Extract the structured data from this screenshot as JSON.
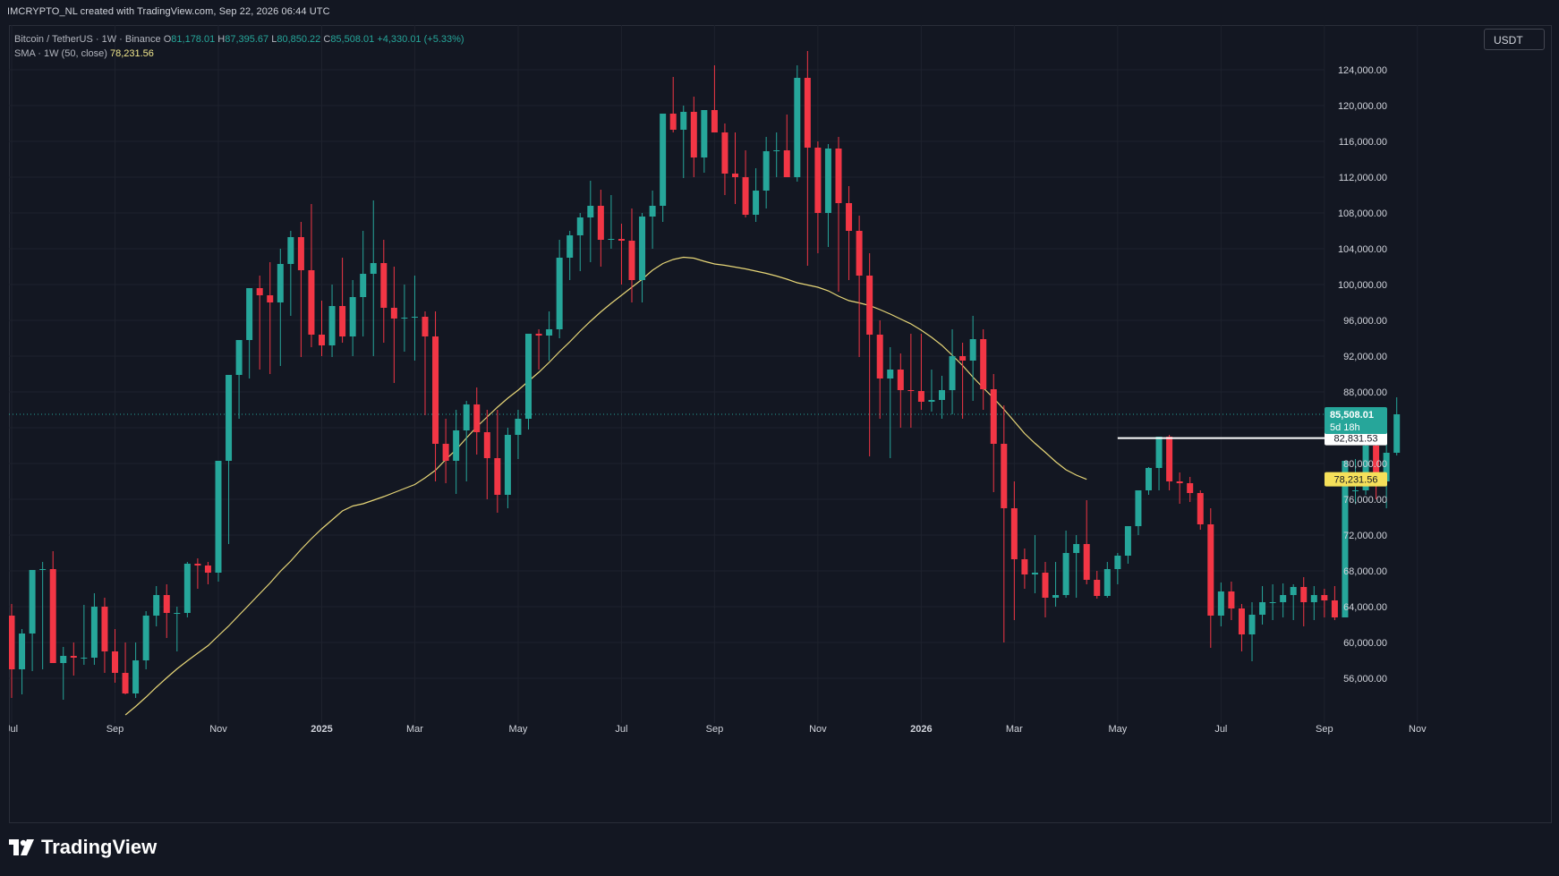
{
  "header": {
    "caption": "IMCRYPTO_NL created with TradingView.com, Sep 22, 2026 06:44 UTC"
  },
  "legend": {
    "symbol_line": "Bitcoin / TetherUS · 1W · Binance",
    "open_label": "O",
    "open": "81,178.01",
    "high_label": "H",
    "high": "87,395.67",
    "low_label": "L",
    "low": "80,850.22",
    "close_label": "C",
    "close": "85,508.01",
    "change": "+4,330.01 (+5.33%)",
    "sma_label": "SMA · 1W (50, close)",
    "sma_value": "78,231.56"
  },
  "currency": "USDT",
  "brand": {
    "name": "TradingView"
  },
  "colors": {
    "background": "#131722",
    "up": "#26a69a",
    "down": "#f23645",
    "sma": "#e8d778",
    "grid": "#1e222d",
    "axis_text": "#d1d4dc",
    "sma_label_bg": "#f5e05a",
    "level_line": "#ffffff"
  },
  "chart_data": {
    "type": "candlestick",
    "title": "Bitcoin / TetherUS · 1W · Binance",
    "y_axis_currency": "USDT",
    "ylim": [
      52000,
      127000
    ],
    "y_ticks": [
      "56,000.00",
      "60,000.00",
      "64,000.00",
      "68,000.00",
      "72,000.00",
      "76,000.00",
      "80,000.00",
      "84,000.00",
      "88,000.00",
      "92,000.00",
      "96,000.00",
      "100,000.00",
      "104,000.00",
      "108,000.00",
      "112,000.00",
      "116,000.00",
      "120,000.00",
      "124,000.00"
    ],
    "y_tick_values": [
      56000,
      60000,
      64000,
      68000,
      72000,
      76000,
      80000,
      84000,
      88000,
      92000,
      96000,
      100000,
      104000,
      108000,
      112000,
      116000,
      120000,
      124000
    ],
    "x_ticks": [
      {
        "label": "Jul",
        "week": 0
      },
      {
        "label": "Sep",
        "week": 10
      },
      {
        "label": "Nov",
        "week": 20
      },
      {
        "label": "2025",
        "week": 30
      },
      {
        "label": "Mar",
        "week": 39
      },
      {
        "label": "May",
        "week": 49
      },
      {
        "label": "Jul",
        "week": 59
      },
      {
        "label": "Sep",
        "week": 68
      },
      {
        "label": "Nov",
        "week": 78
      },
      {
        "label": "2026",
        "week": 88
      },
      {
        "label": "Mar",
        "week": 97
      },
      {
        "label": "May",
        "week": 107
      },
      {
        "label": "Jul",
        "week": 117
      },
      {
        "label": "Sep",
        "week": 127
      },
      {
        "label": "Nov",
        "week": 136
      }
    ],
    "candles_ohlc": [
      [
        63000,
        64300,
        53800,
        57000
      ],
      [
        57000,
        61500,
        54200,
        61000
      ],
      [
        61000,
        62000,
        56800,
        68100
      ],
      [
        68100,
        69000,
        57000,
        68200
      ],
      [
        68200,
        70200,
        59500,
        57700
      ],
      [
        57700,
        59500,
        53600,
        58500
      ],
      [
        58500,
        60000,
        56300,
        58300
      ],
      [
        58300,
        64200,
        57500,
        58300
      ],
      [
        58300,
        65500,
        57500,
        64000
      ],
      [
        64000,
        65000,
        56600,
        59000
      ],
      [
        59000,
        61500,
        55500,
        56600
      ],
      [
        56600,
        60000,
        54200,
        54300
      ],
      [
        54300,
        60000,
        53800,
        58000
      ],
      [
        58000,
        63500,
        57000,
        63000
      ],
      [
        63000,
        66300,
        61800,
        65300
      ],
      [
        65300,
        66500,
        60500,
        63300
      ],
      [
        63300,
        64000,
        59000,
        63300
      ],
      [
        63300,
        69000,
        62800,
        68800
      ],
      [
        68800,
        69400,
        66000,
        68600
      ],
      [
        68600,
        69000,
        66500,
        67800
      ],
      [
        67800,
        72000,
        66800,
        80300
      ],
      [
        80300,
        81000,
        71000,
        89900
      ],
      [
        89900,
        93000,
        85000,
        93800
      ],
      [
        93800,
        99000,
        89500,
        99600
      ],
      [
        99600,
        101000,
        90500,
        98800
      ],
      [
        98800,
        102500,
        90000,
        98000
      ],
      [
        98000,
        104000,
        90900,
        102300
      ],
      [
        102300,
        106000,
        96500,
        105300
      ],
      [
        105300,
        107000,
        91900,
        101600
      ],
      [
        101600,
        109000,
        93000,
        94400
      ],
      [
        94400,
        98200,
        92000,
        93200
      ],
      [
        93200,
        100000,
        91900,
        97600
      ],
      [
        97600,
        103000,
        93500,
        94200
      ],
      [
        94200,
        100500,
        92000,
        98600
      ],
      [
        98600,
        106000,
        94200,
        101200
      ],
      [
        101200,
        109400,
        92000,
        102400
      ],
      [
        102400,
        105000,
        93500,
        97400
      ],
      [
        97400,
        102000,
        89000,
        96200
      ],
      [
        96200,
        100000,
        92500,
        96300
      ],
      [
        96300,
        101000,
        91500,
        96400
      ],
      [
        96400,
        97000,
        85400,
        94200
      ],
      [
        94200,
        97000,
        78000,
        82200
      ],
      [
        82200,
        85000,
        77800,
        80300
      ],
      [
        80300,
        86000,
        76600,
        83700
      ],
      [
        83700,
        87000,
        78000,
        86600
      ],
      [
        86600,
        88500,
        81000,
        83500
      ],
      [
        83500,
        86000,
        76000,
        80600
      ],
      [
        80600,
        86000,
        74500,
        76500
      ],
      [
        76500,
        84000,
        75000,
        83200
      ],
      [
        83200,
        86000,
        80500,
        85000
      ],
      [
        85000,
        91500,
        83800,
        94500
      ],
      [
        94500,
        95000,
        90500,
        94300
      ],
      [
        94300,
        97000,
        91500,
        95000
      ],
      [
        95000,
        105000,
        94000,
        103000
      ],
      [
        103000,
        106000,
        100500,
        105500
      ],
      [
        105500,
        108000,
        101500,
        107500
      ],
      [
        107500,
        111600,
        102500,
        108800
      ],
      [
        108800,
        110600,
        102000,
        105000
      ],
      [
        105000,
        110000,
        104000,
        105100
      ],
      [
        105100,
        106800,
        100000,
        104900
      ],
      [
        104900,
        108500,
        98000,
        100500
      ],
      [
        100500,
        108000,
        98000,
        107600
      ],
      [
        107600,
        110500,
        104000,
        108800
      ],
      [
        108800,
        118000,
        107000,
        119100
      ],
      [
        119100,
        123200,
        117000,
        117300
      ],
      [
        117300,
        120000,
        111900,
        119300
      ],
      [
        119300,
        121000,
        112000,
        114200
      ],
      [
        114200,
        119000,
        112500,
        119500
      ],
      [
        119500,
        124500,
        117000,
        117000
      ],
      [
        117000,
        118000,
        110000,
        112400
      ],
      [
        112400,
        117000,
        109000,
        112000
      ],
      [
        112000,
        115000,
        107500,
        107800
      ],
      [
        107800,
        113000,
        107000,
        110500
      ],
      [
        110500,
        116500,
        108500,
        114900
      ],
      [
        114900,
        117000,
        112000,
        115000
      ],
      [
        115000,
        119000,
        112000,
        112000
      ],
      [
        112000,
        124500,
        111500,
        123100
      ],
      [
        123100,
        126100,
        102100,
        115300
      ],
      [
        115300,
        116000,
        103500,
        108000
      ],
      [
        108000,
        115700,
        104200,
        115200
      ],
      [
        115200,
        116500,
        99200,
        109100
      ],
      [
        109100,
        111000,
        100500,
        106000
      ],
      [
        106000,
        107700,
        91900,
        101000
      ],
      [
        101000,
        103500,
        80800,
        94400
      ],
      [
        94400,
        96000,
        85000,
        89500
      ],
      [
        89500,
        93000,
        80600,
        90500
      ],
      [
        90500,
        92300,
        84000,
        88200
      ],
      [
        88200,
        94500,
        84000,
        88100
      ],
      [
        88100,
        94500,
        86000,
        86900
      ],
      [
        86900,
        90500,
        85800,
        87100
      ],
      [
        87100,
        89800,
        85000,
        88200
      ],
      [
        88200,
        95000,
        85500,
        92000
      ],
      [
        92000,
        93500,
        85000,
        91500
      ],
      [
        91500,
        96500,
        87000,
        93900
      ],
      [
        93900,
        95000,
        86000,
        88300
      ],
      [
        88300,
        90000,
        76800,
        82200
      ],
      [
        82200,
        86500,
        60000,
        75000
      ],
      [
        75000,
        78000,
        62500,
        69300
      ],
      [
        69300,
        70500,
        66000,
        67600
      ],
      [
        67600,
        72000,
        65500,
        67800
      ],
      [
        67800,
        69000,
        62800,
        65000
      ],
      [
        65000,
        69000,
        64000,
        65300
      ],
      [
        65300,
        72500,
        65000,
        70000
      ],
      [
        70000,
        72000,
        65000,
        71000
      ],
      [
        71000,
        75900,
        66500,
        67000
      ],
      [
        67000,
        68000,
        64900,
        65200
      ],
      [
        65200,
        69000,
        65000,
        68200
      ],
      [
        68200,
        70000,
        66500,
        69700
      ],
      [
        69700,
        73000,
        68800,
        73000
      ],
      [
        73000,
        77000,
        72000,
        77000
      ],
      [
        77000,
        79600,
        76500,
        79500
      ],
      [
        79500,
        82800,
        77000,
        83000
      ],
      [
        83000,
        83200,
        77000,
        78000
      ],
      [
        78000,
        79000,
        75500,
        77800
      ],
      [
        77800,
        78500,
        75700,
        76700
      ],
      [
        76700,
        77000,
        72600,
        73200
      ],
      [
        73200,
        75000,
        59400,
        63000
      ],
      [
        63000,
        66700,
        61800,
        65700
      ],
      [
        65700,
        66800,
        62500,
        63800
      ],
      [
        63800,
        64300,
        59000,
        60900
      ],
      [
        60900,
        64500,
        57900,
        63100
      ],
      [
        63100,
        66300,
        62000,
        64500
      ],
      [
        64500,
        66500,
        62500,
        64500
      ],
      [
        64500,
        66600,
        62800,
        65300
      ],
      [
        65300,
        66500,
        62500,
        66200
      ],
      [
        66200,
        67300,
        61800,
        64500
      ],
      [
        64500,
        66300,
        62500,
        65300
      ],
      [
        65300,
        66000,
        62800,
        64700
      ],
      [
        64700,
        66300,
        62500,
        62800
      ],
      [
        62800,
        78000,
        62800,
        80300
      ],
      [
        77000,
        80500,
        75500,
        77000
      ],
      [
        77000,
        84000,
        76500,
        82000
      ],
      [
        82000,
        82800,
        76000,
        78000
      ],
      [
        78000,
        84500,
        75000,
        81200
      ],
      [
        81200,
        87400,
        80900,
        85500
      ]
    ],
    "sma": {
      "name": "SMA · 1W (50, close)",
      "start_week": 11,
      "values": [
        51900,
        52850,
        53900,
        55000,
        56050,
        57050,
        57950,
        58800,
        59650,
        60750,
        61850,
        63050,
        64250,
        65450,
        66650,
        67950,
        69100,
        70400,
        71600,
        72700,
        73700,
        74700,
        75250,
        75500,
        75900,
        76300,
        76750,
        77200,
        77650,
        78400,
        79250,
        80450,
        81550,
        82850,
        84100,
        85200,
        86300,
        87300,
        88200,
        89200,
        90200,
        91300,
        92500,
        93600,
        94800,
        95900,
        96950,
        97900,
        98800,
        99700,
        100600,
        101600,
        102350,
        102800,
        103050,
        102950,
        102600,
        102300,
        102150,
        101950,
        101750,
        101500,
        101250,
        100950,
        100600,
        100200,
        99950,
        99700,
        99300,
        98700,
        98200,
        97950,
        97650,
        97200,
        96700,
        96150,
        95600,
        94900,
        94100,
        93200,
        92100,
        90950,
        89650,
        88450,
        87300,
        86050,
        84700,
        83350,
        82250,
        81250,
        80200,
        79300,
        78700,
        78231.56
      ]
    },
    "level_line": {
      "price": 82831.53,
      "start_week": 107,
      "label": "82,831.53"
    },
    "last_price": {
      "value": "85,508.01",
      "countdown": "5d 18h"
    },
    "sma_price_label": "78,231.56",
    "grid": true
  }
}
